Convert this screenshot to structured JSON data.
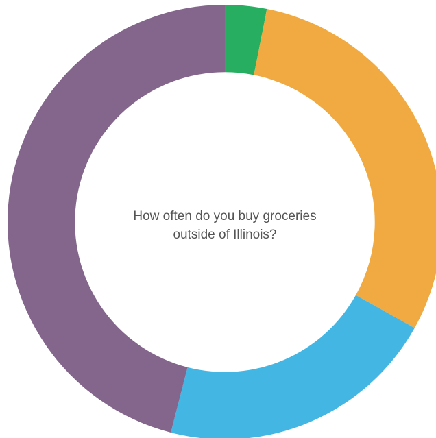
{
  "chart_data": {
    "type": "pie",
    "title": "How often do you buy groceries outside of Illinois?",
    "values": [
      3.1,
      30.0,
      20.9,
      46.0
    ],
    "colors": [
      "#27ae60",
      "#f0aa41",
      "#44b6e3",
      "#84668c"
    ],
    "hole_ratio": 0.69,
    "start_angle_deg": 0,
    "direction": "clockwise"
  }
}
